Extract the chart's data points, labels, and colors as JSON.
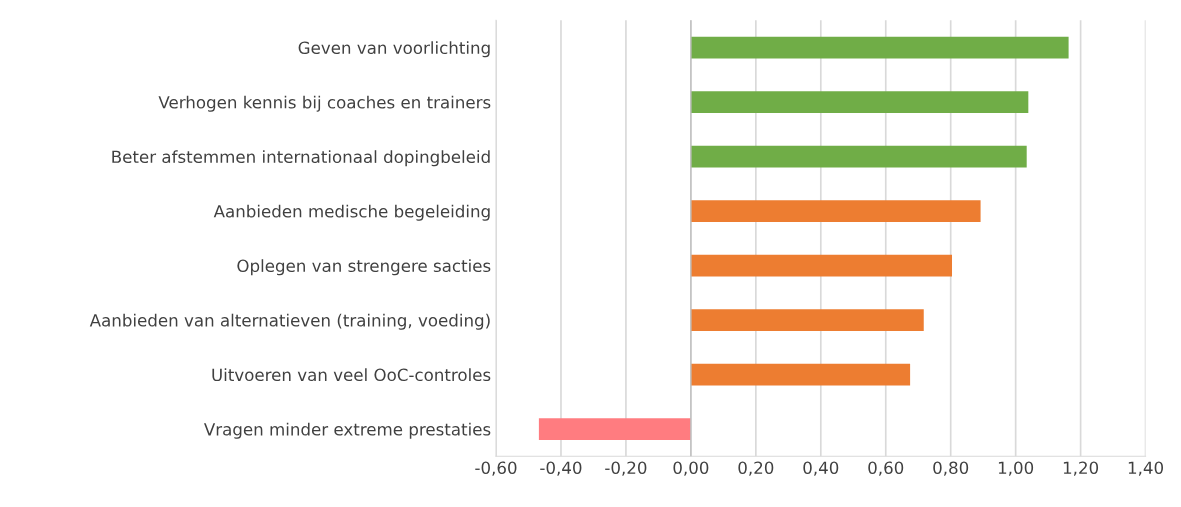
{
  "chart_data": {
    "type": "bar",
    "orientation": "horizontal",
    "categories": [
      "Geven van voorlichting",
      "Verhogen kennis bij coaches en trainers",
      "Beter afstemmen internationaal dopingbeleid",
      "Aanbieden medische begeleiding",
      "Oplegen van strengere sacties",
      "Aanbieden van alternatieven (training, voeding)",
      "Uitvoeren van veel OoC-controles",
      "Vragen minder extreme prestaties"
    ],
    "values": [
      1.163,
      1.039,
      1.034,
      0.892,
      0.804,
      0.717,
      0.675,
      -0.468
    ],
    "colors": [
      "#70ad47",
      "#70ad47",
      "#70ad47",
      "#ed7d31",
      "#ed7d31",
      "#ed7d31",
      "#ed7d31",
      "#ff7c80"
    ],
    "xlim": [
      -0.6,
      1.4
    ],
    "xticks": [
      {
        "value": -0.6,
        "label": "-0,60"
      },
      {
        "value": -0.4,
        "label": "-0,40"
      },
      {
        "value": -0.2,
        "label": "-0,20"
      },
      {
        "value": 0,
        "label": "0,00"
      },
      {
        "value": 0.2,
        "label": "0,20"
      },
      {
        "value": 0.4,
        "label": "0,40"
      },
      {
        "value": 0.6,
        "label": "0,60"
      },
      {
        "value": 0.8,
        "label": "0,80"
      },
      {
        "value": 1.0,
        "label": "1,00"
      },
      {
        "value": 1.2,
        "label": "1,20"
      },
      {
        "value": 1.4,
        "label": "1,40"
      }
    ],
    "grid": "x"
  }
}
